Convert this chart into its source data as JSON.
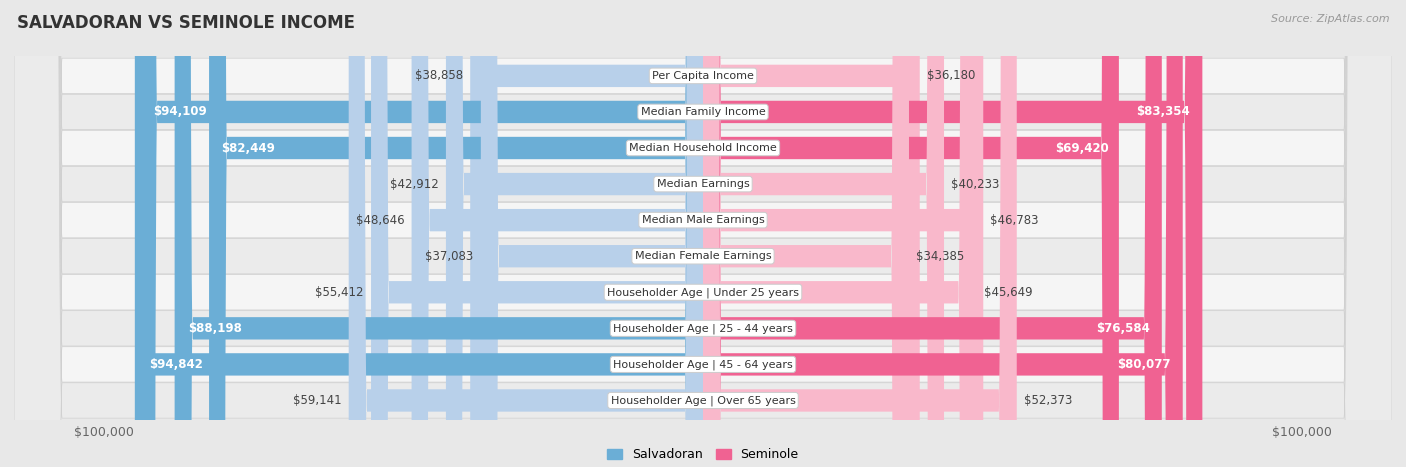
{
  "title": "SALVADORAN VS SEMINOLE INCOME",
  "source": "Source: ZipAtlas.com",
  "categories": [
    "Per Capita Income",
    "Median Family Income",
    "Median Household Income",
    "Median Earnings",
    "Median Male Earnings",
    "Median Female Earnings",
    "Householder Age | Under 25 years",
    "Householder Age | 25 - 44 years",
    "Householder Age | 45 - 64 years",
    "Householder Age | Over 65 years"
  ],
  "salvadoran_values": [
    38858,
    94109,
    82449,
    42912,
    48646,
    37083,
    55412,
    88198,
    94842,
    59141
  ],
  "seminole_values": [
    36180,
    83354,
    69420,
    40233,
    46783,
    34385,
    45649,
    76584,
    80077,
    52373
  ],
  "salvadoran_labels": [
    "$38,858",
    "$94,109",
    "$82,449",
    "$42,912",
    "$48,646",
    "$37,083",
    "$55,412",
    "$88,198",
    "$94,842",
    "$59,141"
  ],
  "seminole_labels": [
    "$36,180",
    "$83,354",
    "$69,420",
    "$40,233",
    "$46,783",
    "$34,385",
    "$45,649",
    "$76,584",
    "$80,077",
    "$52,373"
  ],
  "sal_label_inside": [
    false,
    true,
    true,
    false,
    false,
    false,
    false,
    true,
    true,
    false
  ],
  "sem_label_inside": [
    false,
    true,
    true,
    false,
    false,
    false,
    false,
    true,
    true,
    false
  ],
  "max_value": 100000,
  "salvadoran_color_light": "#b8d0ea",
  "salvadoran_color_dark": "#6baed6",
  "seminole_color_light": "#f9b8cb",
  "seminole_color_dark": "#f06292",
  "row_bg_light": "#f7f7f7",
  "row_bg_dark": "#ececec",
  "bar_bg_color": "#e8e8e8",
  "bg_color": "#e8e8e8",
  "xlabel_left": "$100,000",
  "xlabel_right": "$100,000",
  "legend_sal": "Salvadoran",
  "legend_sem": "Seminole"
}
